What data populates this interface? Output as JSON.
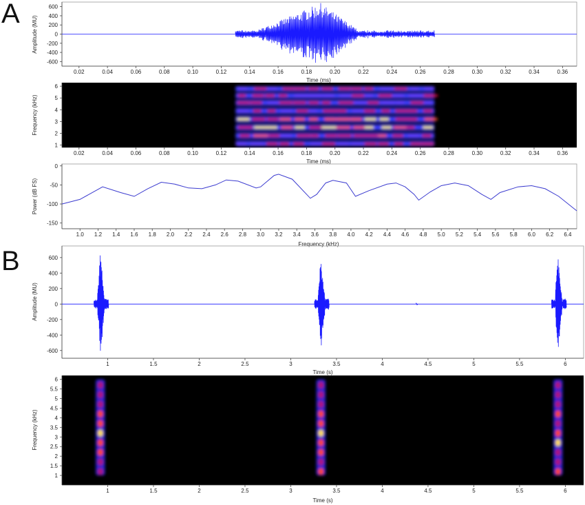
{
  "panel_labels": [
    "A",
    "B"
  ],
  "colors": {
    "wave": "#1a1aff",
    "power": "#3a3acf",
    "spec_bg": "#000000",
    "axis": "#444444"
  },
  "chart_data": [
    {
      "id": "A1",
      "type": "line",
      "xlabel": "Time (ms)",
      "ylabel": "Amplitude (MU)",
      "xlim": [
        0.008,
        0.37
      ],
      "ylim": [
        -700,
        700
      ],
      "xticks": [
        "0.02",
        "0.04",
        "0.06",
        "0.08",
        "0.10",
        "0.12",
        "0.14",
        "0.16",
        "0.18",
        "0.20",
        "0.22",
        "0.24",
        "0.26",
        "0.28",
        "0.30",
        "0.32",
        "0.34",
        "0.36"
      ],
      "yticks": [
        "600",
        "400",
        "200",
        "0",
        "-200",
        "-400",
        "-600"
      ],
      "series": [
        {
          "values": "oscillation burst between 0.13 and 0.27 ms with peak envelope ~680 MU near 0.19 ms; flat baseline elsewhere"
        }
      ]
    },
    {
      "id": "A2",
      "type": "heatmap",
      "xlabel": "Time (ms)",
      "ylabel": "Frequency (kHz)",
      "xlim": [
        0.008,
        0.37
      ],
      "ylim": [
        0.8,
        6.3
      ],
      "xticks": [
        "0.02",
        "0.04",
        "0.06",
        "0.08",
        "0.10",
        "0.12",
        "0.14",
        "0.16",
        "0.18",
        "0.20",
        "0.22",
        "0.24",
        "0.26",
        "0.28",
        "0.30",
        "0.32",
        "0.34",
        "0.36"
      ],
      "yticks": [
        "6",
        "5",
        "4",
        "3",
        "2",
        "1"
      ],
      "energy": {
        "time_range": [
          0.13,
          0.27
        ],
        "harmonic_bands_khz": [
          1.1,
          1.8,
          2.5,
          3.2,
          3.9,
          4.6,
          5.2,
          5.8
        ]
      }
    },
    {
      "id": "A3",
      "type": "line",
      "xlabel": "Frequency (kHz)",
      "ylabel": "Power (dB FS)",
      "xlim": [
        0.8,
        6.5
      ],
      "ylim": [
        -165,
        5
      ],
      "xticks": [
        "1.0",
        "1.2",
        "1.4",
        "1.6",
        "1.8",
        "2.0",
        "2.2",
        "2.4",
        "2.6",
        "2.8",
        "3.0",
        "3.2",
        "3.4",
        "3.6",
        "3.8",
        "4.0",
        "4.2",
        "4.4",
        "4.6",
        "4.8",
        "5.0",
        "5.2",
        "5.4",
        "5.6",
        "5.8",
        "6.0",
        "6.2",
        "6.4"
      ],
      "yticks": [
        "0",
        "-50",
        "-100",
        "-150"
      ],
      "x": [
        0.8,
        1.0,
        1.25,
        1.45,
        1.6,
        1.75,
        1.9,
        2.05,
        2.2,
        2.35,
        2.5,
        2.62,
        2.75,
        2.95,
        3.0,
        3.15,
        3.2,
        3.35,
        3.55,
        3.62,
        3.72,
        3.8,
        3.95,
        4.05,
        4.2,
        4.4,
        4.5,
        4.6,
        4.7,
        4.75,
        4.88,
        5.0,
        5.15,
        5.3,
        5.45,
        5.55,
        5.65,
        5.85,
        6.0,
        6.15,
        6.3,
        6.5
      ],
      "y": [
        -100,
        -88,
        -55,
        -70,
        -80,
        -60,
        -43,
        -48,
        -58,
        -60,
        -50,
        -37,
        -40,
        -58,
        -55,
        -25,
        -22,
        -35,
        -85,
        -75,
        -45,
        -38,
        -45,
        -80,
        -65,
        -48,
        -45,
        -55,
        -75,
        -90,
        -68,
        -52,
        -45,
        -52,
        -75,
        -88,
        -70,
        -55,
        -52,
        -60,
        -80,
        -118
      ]
    },
    {
      "id": "B1",
      "type": "line",
      "xlabel": "Time (s)",
      "ylabel": "Amplitude (MU)",
      "xlim": [
        0.5,
        6.2
      ],
      "ylim": [
        -700,
        750
      ],
      "xticks": [
        "1",
        "1.5",
        "2",
        "2.5",
        "3",
        "3.5",
        "4",
        "4.5",
        "5",
        "5.5",
        "6"
      ],
      "yticks": [
        "600",
        "400",
        "200",
        "0",
        "-200",
        "-400",
        "-600"
      ],
      "series": [
        {
          "values": "three short bursts near 0.92 s, 3.33 s and 5.92 s with peaks ~680, 620 and 630 MU; flat baseline elsewhere"
        }
      ]
    },
    {
      "id": "B2",
      "type": "heatmap",
      "xlabel": "Time (s)",
      "ylabel": "Frequency (kHz)",
      "xlim": [
        0.5,
        6.2
      ],
      "ylim": [
        0.5,
        6.2
      ],
      "xticks": [
        "1",
        "1.5",
        "2",
        "2.5",
        "3",
        "3.5",
        "4",
        "4.5",
        "5",
        "5.5",
        "6"
      ],
      "yticks": [
        "6",
        "5.5",
        "5",
        "4.5",
        "4",
        "3.5",
        "3",
        "2.5",
        "2",
        "1.5",
        "1"
      ],
      "energy": {
        "times_s": [
          0.92,
          3.33,
          5.92
        ],
        "freq_range_khz": [
          1.0,
          6.0
        ]
      }
    }
  ]
}
